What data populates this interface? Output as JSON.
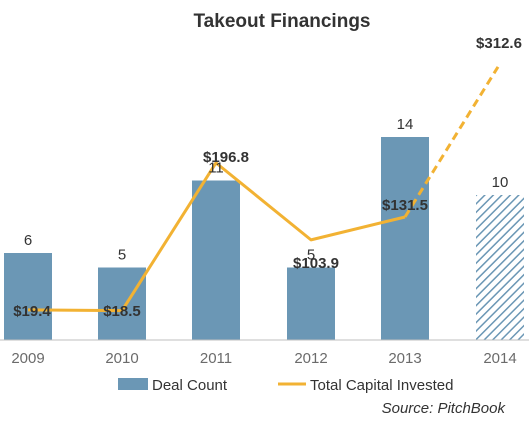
{
  "chart_data": {
    "type": "bar",
    "title": "Takeout Financings",
    "categories": [
      "2009",
      "2010",
      "2011",
      "2012",
      "2013",
      "2014"
    ],
    "series": [
      {
        "name": "Deal Count",
        "kind": "bar",
        "values": [
          6,
          5,
          11,
          5,
          14,
          10
        ],
        "labels": [
          "6",
          "5",
          "11",
          "5",
          "14",
          "10"
        ],
        "estimated_last": true
      },
      {
        "name": "Total Capital Invested",
        "kind": "line",
        "values": [
          19.4,
          18.5,
          196.8,
          103.9,
          131.5,
          312.6
        ],
        "labels": [
          "$19.4",
          "$18.5",
          "$196.8",
          "$103.9",
          "$131.5",
          "$312.6"
        ],
        "dashed_last_segment": true
      }
    ],
    "source": "Source: PitchBook",
    "legend_position": "bottom",
    "grid": false,
    "colors": {
      "bar": "#6b97b5",
      "line": "#f2b233",
      "axis": "#bfbfbf"
    }
  }
}
